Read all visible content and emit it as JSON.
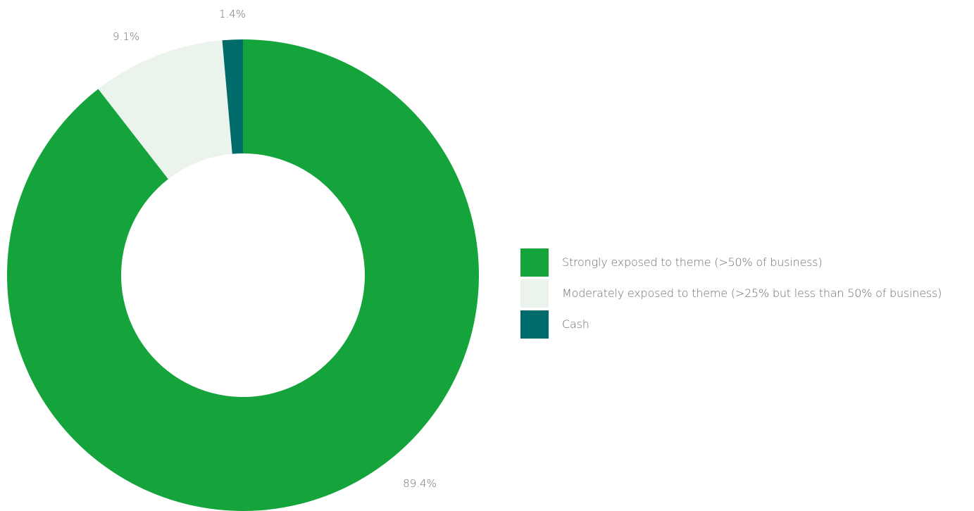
{
  "chart_data": {
    "type": "pie",
    "donut": true,
    "categories": [
      "Strongly exposed to theme (>50% of business)",
      "Moderately exposed to theme (>25% but less than 50% of business)",
      "Cash"
    ],
    "values": [
      89.4,
      9.1,
      1.4
    ],
    "value_labels": [
      "89.4%",
      "9.1%",
      "1.4%"
    ],
    "colors": [
      "#15a43c",
      "#eaf4ec",
      "#006b6b"
    ],
    "legend_position": "right",
    "title": ""
  }
}
